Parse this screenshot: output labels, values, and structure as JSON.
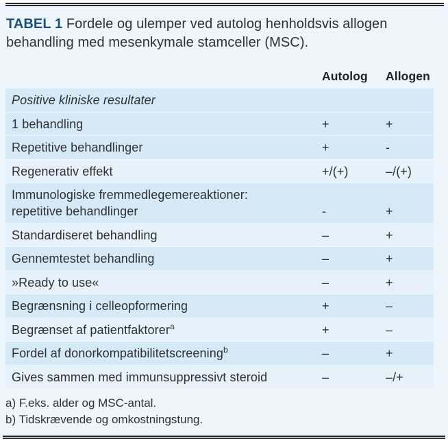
{
  "title": {
    "tag": "TABEL 1",
    "text": " Fordele og ulemper ved autolog henholdsvis allogen behandling med mesenkymale stamceller (MSC)."
  },
  "columns": {
    "autolog": "Autolog",
    "allogen": "Allogen"
  },
  "rows": [
    {
      "label": "Positive kliniske resultater",
      "autolog": "",
      "allogen": "",
      "shade": "dark",
      "section": true
    },
    {
      "label": "1 behandling",
      "autolog": "+",
      "allogen": "+",
      "shade": "dark"
    },
    {
      "label": "Repetitive behandlinger",
      "autolog": "+",
      "allogen": "-",
      "shade": "dark"
    },
    {
      "label": "Regenerativ effekt",
      "autolog": "+/(+)",
      "allogen": "–/(+)",
      "shade": "light"
    },
    {
      "label": "Immunologiske fremmedlegemereaktioner:",
      "label2": "repetitive behandlinger",
      "autolog": "-",
      "allogen": "+",
      "shade": "dark"
    },
    {
      "label": "Standardiseret behandling",
      "autolog": "–",
      "allogen": "+",
      "shade": "light"
    },
    {
      "label": "Gennemtestet behandling",
      "autolog": "–",
      "allogen": "+",
      "shade": "dark"
    },
    {
      "label": "»Ready to use«",
      "autolog": "–",
      "allogen": "+",
      "shade": "light"
    },
    {
      "label": "Begrænsning i celleopformering",
      "autolog": "+",
      "allogen": "–",
      "shade": "dark"
    },
    {
      "label": "Begrænset af patientfaktorer",
      "sup": "a",
      "autolog": "+",
      "allogen": "–",
      "shade": "light"
    },
    {
      "label": "Fordel af donorkompatibilitetscreening",
      "sup": "b",
      "autolog": "–",
      "allogen": "+",
      "shade": "dark"
    },
    {
      "label": "Gives sammen med immunsuppressivt steroid",
      "autolog": "–",
      "allogen": "–/+",
      "shade": "light"
    }
  ],
  "footnotes": [
    "a) F.eks. alder og MSC-antal.",
    "b) Tidskrævende og omkostningstung."
  ],
  "colors": {
    "page_background": "#eef5fb",
    "row_dark": "#d5eaf6",
    "row_light": "#e6f1fa",
    "title_accent": "#1c4e7e",
    "text": "#2e3033",
    "rule": "#26282b"
  }
}
